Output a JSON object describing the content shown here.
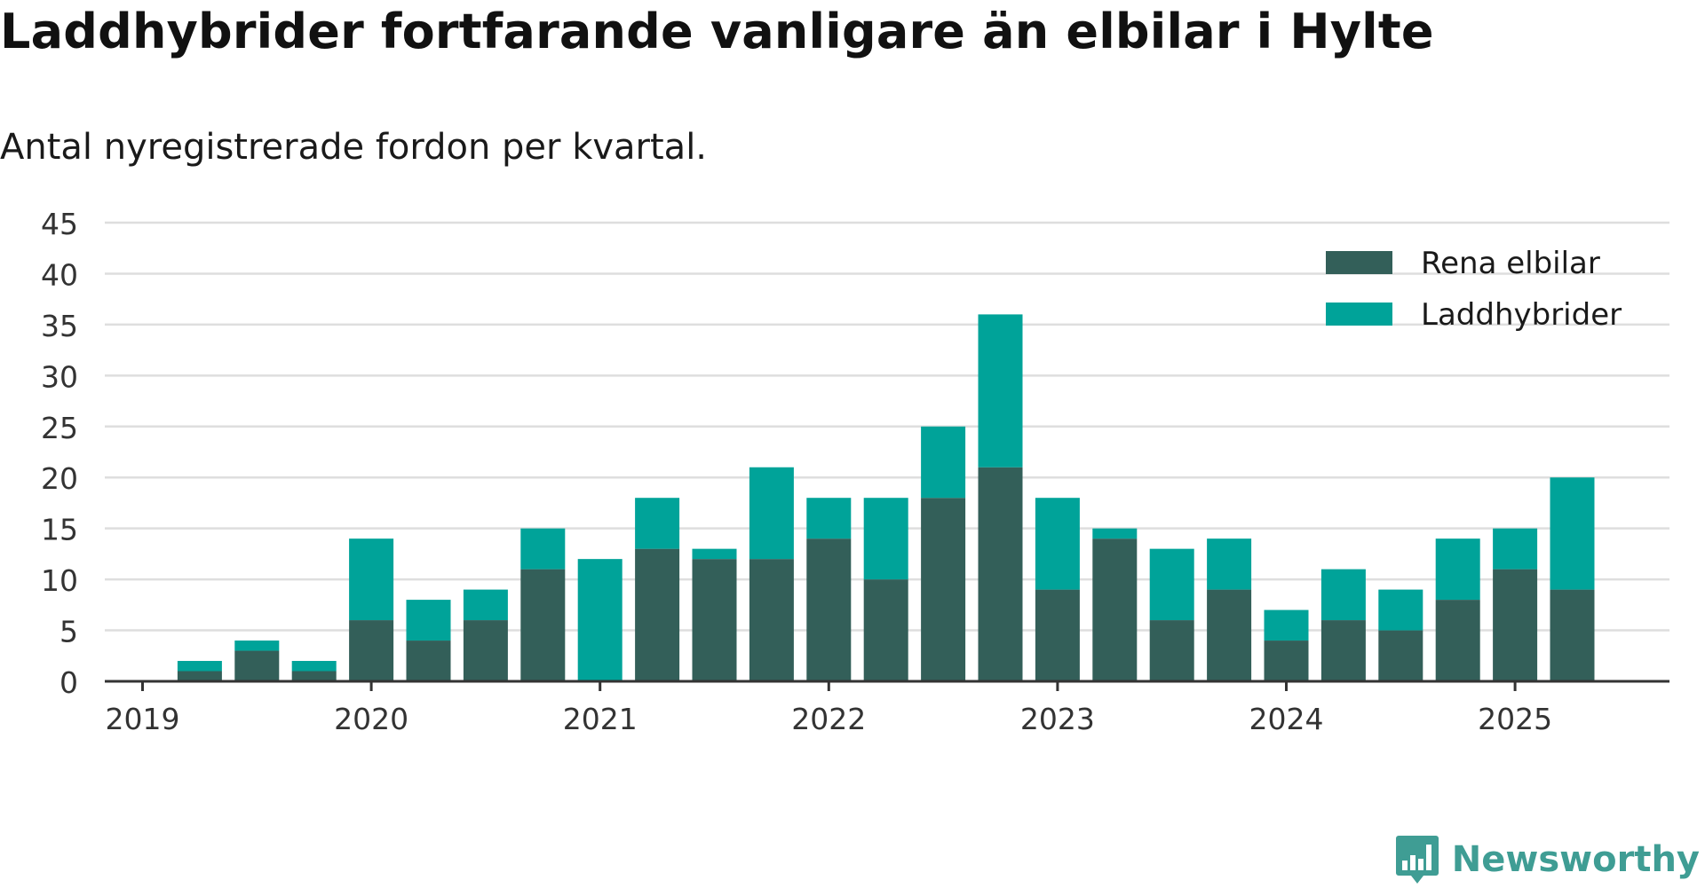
{
  "title": "Laddhybrider fortfarande vanligare än elbilar i Hylte",
  "subtitle": "Antal nyregistrerade fordon per kvartal.",
  "brand": "Newsworthy",
  "colors": {
    "rena_elbilar": "#335f59",
    "laddhybrider": "#00a399",
    "grid": "#dedede",
    "axis": "#333333",
    "brand": "#3f9d94"
  },
  "chart_data": {
    "type": "bar",
    "stacked": true,
    "categories": [
      "2019 Q1",
      "2019 Q2",
      "2019 Q3",
      "2019 Q4",
      "2020 Q1",
      "2020 Q2",
      "2020 Q3",
      "2020 Q4",
      "2021 Q1",
      "2021 Q2",
      "2021 Q3",
      "2021 Q4",
      "2022 Q1",
      "2022 Q2",
      "2022 Q3",
      "2022 Q4",
      "2023 Q1",
      "2023 Q2",
      "2023 Q3",
      "2023 Q4",
      "2024 Q1",
      "2024 Q2",
      "2024 Q3",
      "2024 Q4",
      "2025 Q1",
      "2025 Q2"
    ],
    "series": [
      {
        "name": "Rena elbilar",
        "values": [
          0,
          1,
          3,
          1,
          6,
          4,
          6,
          11,
          0,
          13,
          12,
          12,
          14,
          10,
          18,
          21,
          9,
          14,
          6,
          9,
          4,
          6,
          5,
          8,
          11,
          9
        ]
      },
      {
        "name": "Laddhybrider",
        "values": [
          0,
          1,
          1,
          1,
          8,
          4,
          3,
          4,
          12,
          5,
          1,
          9,
          4,
          8,
          7,
          15,
          9,
          1,
          7,
          5,
          3,
          5,
          4,
          6,
          4,
          11
        ]
      }
    ],
    "x_tick_labels": [
      "2019",
      "2020",
      "2021",
      "2022",
      "2023",
      "2024",
      "2025"
    ],
    "y_ticks": [
      0,
      5,
      10,
      15,
      20,
      25,
      30,
      35,
      40,
      45
    ],
    "ylim": [
      0,
      45
    ],
    "grid": true,
    "legend_position": "top-right"
  }
}
